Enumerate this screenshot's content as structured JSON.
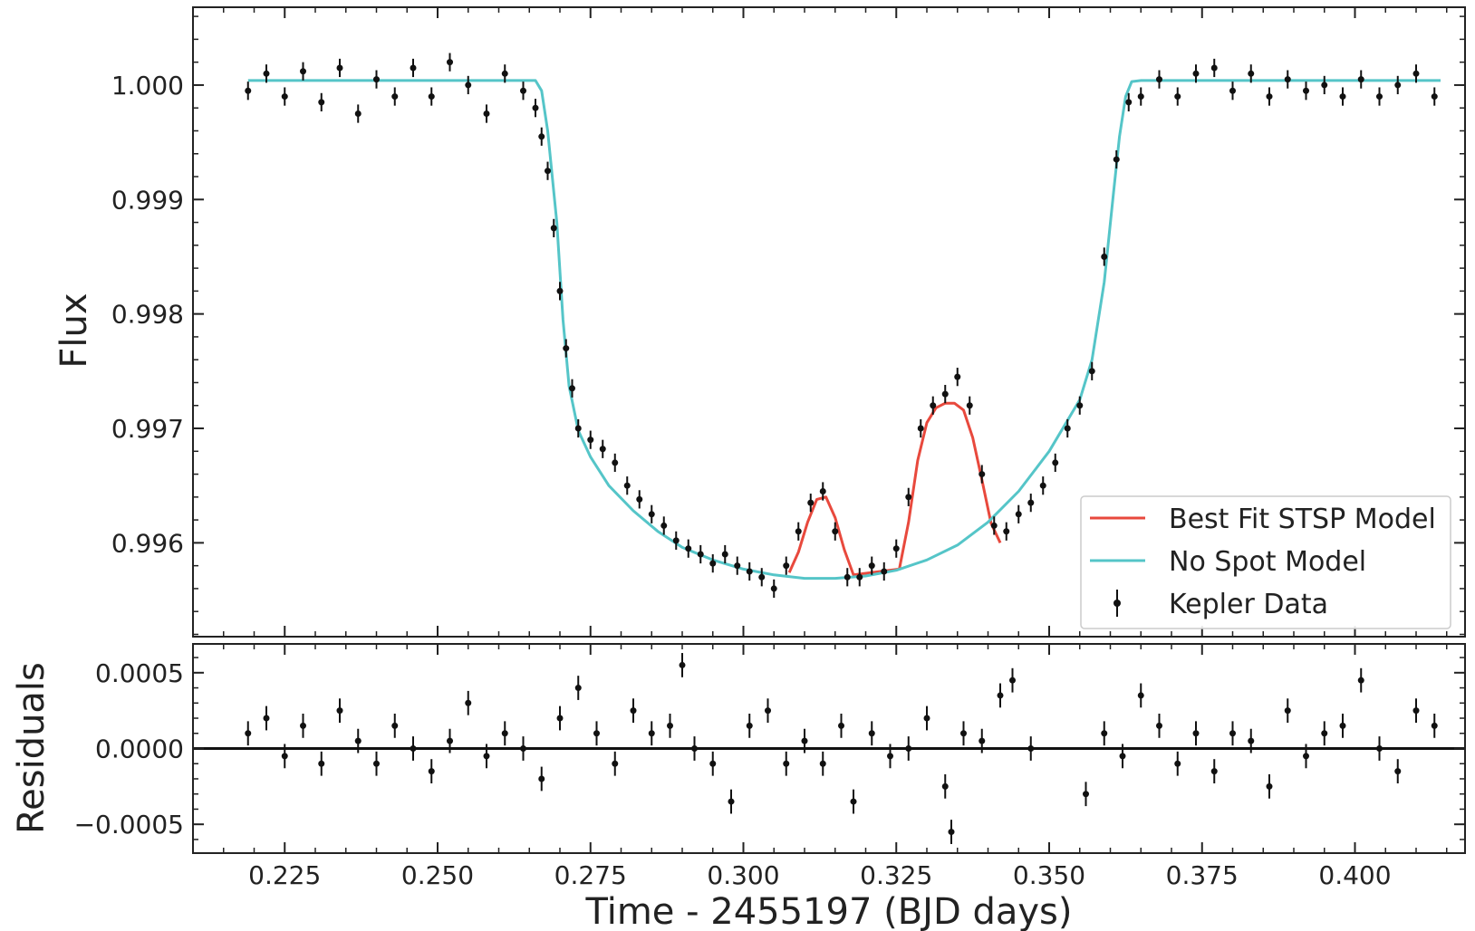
{
  "chart_data": [
    {
      "type": "scatter",
      "panel": "top",
      "xlabel": "",
      "ylabel": "Flux",
      "xlim": [
        0.21,
        0.418
      ],
      "ylim": [
        0.99518,
        1.00068
      ],
      "x_ticks": [
        0.225,
        0.25,
        0.275,
        0.3,
        0.325,
        0.35,
        0.375,
        0.4
      ],
      "y_ticks": [
        0.996,
        0.997,
        0.998,
        0.999,
        1.0
      ],
      "y_tick_labels": [
        "0.996",
        "0.997",
        "0.998",
        "0.999",
        "1.000"
      ],
      "legend": {
        "placement": "lower-right",
        "entries": [
          "Best Fit STSP Model",
          "No Spot Model",
          "Kepler Data"
        ]
      },
      "series": [
        {
          "name": "Best Fit STSP Model",
          "kind": "line",
          "color": "#e8493d",
          "x": [
            0.3075,
            0.309,
            0.3105,
            0.312,
            0.3135,
            0.315,
            0.3165,
            0.318,
            0.3255,
            0.327,
            0.3285,
            0.33,
            0.3315,
            0.333,
            0.3345,
            0.336,
            0.3375,
            0.339,
            0.3405,
            0.342
          ],
          "y": [
            0.99574,
            0.99592,
            0.99618,
            0.99638,
            0.9964,
            0.99622,
            0.99594,
            0.99572,
            0.99577,
            0.99618,
            0.99672,
            0.99705,
            0.99718,
            0.99722,
            0.99722,
            0.99716,
            0.99692,
            0.99655,
            0.99617,
            0.996
          ]
        },
        {
          "name": "No Spot Model",
          "kind": "line",
          "color": "#55c5c8",
          "x": [
            0.219,
            0.23,
            0.245,
            0.26,
            0.266,
            0.267,
            0.268,
            0.2695,
            0.2705,
            0.2715,
            0.273,
            0.275,
            0.278,
            0.282,
            0.286,
            0.29,
            0.295,
            0.3,
            0.305,
            0.31,
            0.315,
            0.32,
            0.325,
            0.33,
            0.335,
            0.34,
            0.345,
            0.35,
            0.355,
            0.357,
            0.359,
            0.3605,
            0.3615,
            0.3625,
            0.3635,
            0.365,
            0.38,
            0.4,
            0.414
          ],
          "y": [
            1.00004,
            1.00004,
            1.00004,
            1.00004,
            1.00004,
            0.99995,
            0.9996,
            0.9988,
            0.99795,
            0.99737,
            0.99698,
            0.99675,
            0.9965,
            0.99628,
            0.9961,
            0.99596,
            0.99585,
            0.99577,
            0.99572,
            0.99569,
            0.99569,
            0.99571,
            0.99576,
            0.99585,
            0.99598,
            0.99618,
            0.99645,
            0.9968,
            0.99725,
            0.9976,
            0.99828,
            0.99905,
            0.99955,
            0.9999,
            1.00003,
            1.00004,
            1.00004,
            1.00004,
            1.00004
          ]
        },
        {
          "name": "Kepler Data",
          "kind": "errorbar",
          "color": "#111111",
          "y_error": 8e-05,
          "x": [
            0.219,
            0.222,
            0.225,
            0.228,
            0.231,
            0.234,
            0.237,
            0.24,
            0.243,
            0.246,
            0.249,
            0.252,
            0.255,
            0.258,
            0.261,
            0.264,
            0.266,
            0.267,
            0.268,
            0.269,
            0.27,
            0.271,
            0.272,
            0.273,
            0.275,
            0.277,
            0.279,
            0.281,
            0.283,
            0.285,
            0.287,
            0.289,
            0.291,
            0.293,
            0.295,
            0.297,
            0.299,
            0.301,
            0.303,
            0.305,
            0.307,
            0.309,
            0.311,
            0.313,
            0.315,
            0.317,
            0.319,
            0.321,
            0.323,
            0.325,
            0.327,
            0.329,
            0.331,
            0.333,
            0.335,
            0.337,
            0.339,
            0.341,
            0.343,
            0.345,
            0.347,
            0.349,
            0.351,
            0.353,
            0.355,
            0.357,
            0.359,
            0.361,
            0.363,
            0.365,
            0.368,
            0.371,
            0.374,
            0.377,
            0.38,
            0.383,
            0.386,
            0.389,
            0.392,
            0.395,
            0.398,
            0.401,
            0.404,
            0.407,
            0.41,
            0.413
          ],
          "y": [
            0.99995,
            1.0001,
            0.9999,
            1.00012,
            0.99985,
            1.00015,
            0.99975,
            1.00005,
            0.9999,
            1.00015,
            0.9999,
            1.0002,
            1.0,
            0.99975,
            1.0001,
            0.99995,
            0.9998,
            0.99955,
            0.99925,
            0.99875,
            0.9982,
            0.9977,
            0.99735,
            0.997,
            0.9969,
            0.99682,
            0.9967,
            0.9965,
            0.99638,
            0.99625,
            0.99615,
            0.99602,
            0.99595,
            0.9959,
            0.99582,
            0.9959,
            0.9958,
            0.99575,
            0.9957,
            0.9956,
            0.9958,
            0.9961,
            0.99635,
            0.99645,
            0.9961,
            0.9957,
            0.9957,
            0.9958,
            0.99575,
            0.99595,
            0.9964,
            0.997,
            0.9972,
            0.9973,
            0.99745,
            0.9972,
            0.9966,
            0.99615,
            0.9961,
            0.99625,
            0.99635,
            0.9965,
            0.9967,
            0.997,
            0.9972,
            0.9975,
            0.9985,
            0.99935,
            0.99985,
            0.9999,
            1.00005,
            0.9999,
            1.0001,
            1.00015,
            0.99995,
            1.0001,
            0.9999,
            1.00005,
            0.99995,
            1.0,
            0.9999,
            1.00005,
            0.9999,
            1.0,
            1.0001,
            0.9999
          ]
        }
      ]
    },
    {
      "type": "scatter",
      "panel": "bottom",
      "xlabel": "Time - 2455197 (BJD days)",
      "ylabel": "Residuals",
      "xlim": [
        0.21,
        0.418
      ],
      "ylim": [
        -0.00069,
        0.00069
      ],
      "x_ticks": [
        0.225,
        0.25,
        0.275,
        0.3,
        0.325,
        0.35,
        0.375,
        0.4
      ],
      "x_tick_labels": [
        "0.225",
        "0.250",
        "0.275",
        "0.300",
        "0.325",
        "0.350",
        "0.375",
        "0.400"
      ],
      "y_ticks": [
        -0.0005,
        0.0,
        0.0005
      ],
      "y_tick_labels": [
        "−0.0005",
        "0.0000",
        "0.0005"
      ],
      "zero_line": 0.0,
      "series": [
        {
          "name": "Kepler Data",
          "kind": "errorbar",
          "color": "#111111",
          "y_error": 8e-05,
          "x": [
            0.219,
            0.222,
            0.225,
            0.228,
            0.231,
            0.234,
            0.237,
            0.24,
            0.243,
            0.246,
            0.249,
            0.252,
            0.255,
            0.258,
            0.261,
            0.264,
            0.267,
            0.27,
            0.273,
            0.276,
            0.279,
            0.282,
            0.285,
            0.288,
            0.29,
            0.292,
            0.295,
            0.298,
            0.301,
            0.304,
            0.307,
            0.31,
            0.313,
            0.316,
            0.318,
            0.321,
            0.324,
            0.327,
            0.33,
            0.333,
            0.334,
            0.336,
            0.339,
            0.342,
            0.344,
            0.347,
            0.356,
            0.359,
            0.362,
            0.365,
            0.368,
            0.371,
            0.374,
            0.377,
            0.38,
            0.383,
            0.386,
            0.389,
            0.392,
            0.395,
            0.398,
            0.401,
            0.404,
            0.407,
            0.41,
            0.413
          ],
          "y": [
            0.0001,
            0.0002,
            -5e-05,
            0.00015,
            -0.0001,
            0.00025,
            5e-05,
            -0.0001,
            0.00015,
            0.0,
            -0.00015,
            5e-05,
            0.0003,
            -5e-05,
            0.0001,
            0.0,
            -0.0002,
            0.0002,
            0.0004,
            0.0001,
            -0.0001,
            0.00025,
            0.0001,
            0.00015,
            0.00055,
            0.0,
            -0.0001,
            -0.00035,
            0.00015,
            0.00025,
            -0.0001,
            5e-05,
            -0.0001,
            0.00015,
            -0.00035,
            0.0001,
            -5e-05,
            0.0,
            0.0002,
            -0.00025,
            -0.00055,
            0.0001,
            5e-05,
            0.00035,
            0.00045,
            0.0,
            -0.0003,
            0.0001,
            -5e-05,
            0.00035,
            0.00015,
            -0.0001,
            0.0001,
            -0.00015,
            0.0001,
            5e-05,
            -0.00025,
            0.00025,
            -5e-05,
            0.0001,
            0.00015,
            0.00045,
            0.0,
            -0.00015,
            0.00025,
            0.00015
          ]
        }
      ]
    }
  ],
  "colors": {
    "best_fit": "#e8493d",
    "no_spot": "#55c5c8",
    "data": "#111111",
    "axis": "#222222"
  }
}
